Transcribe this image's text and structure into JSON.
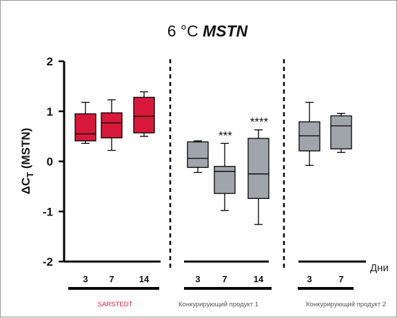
{
  "chart_data": {
    "type": "box",
    "title_prefix": "6 °C ",
    "title_gene": "MSTN",
    "ylabel_delta": "ΔC",
    "ylabel_sub": "T",
    "ylabel_rest": " (MSTN)",
    "ylim": [
      -2,
      2
    ],
    "yticks": [
      "2",
      "1",
      "0",
      "-1",
      "-2"
    ],
    "x_unit_label": "Дни",
    "colors": {
      "sarstedt": "#d6193a",
      "competitor": "#a0a4ab",
      "sarstedt_label": "#d6193a"
    },
    "groups": [
      {
        "name": "SARSTEDT",
        "categories": [
          "3",
          "7",
          "14"
        ]
      },
      {
        "name": "Конкурирующий продукт 1",
        "categories": [
          "3",
          "7",
          "14"
        ]
      },
      {
        "name": "Конкурирующий продукт 2",
        "categories": [
          "3",
          "7"
        ]
      }
    ],
    "boxes": [
      {
        "group": 0,
        "day": "3",
        "min": 0.36,
        "q1": 0.41,
        "median": 0.55,
        "q3": 0.95,
        "max": 1.18,
        "sig": ""
      },
      {
        "group": 0,
        "day": "7",
        "min": 0.22,
        "q1": 0.47,
        "median": 0.77,
        "q3": 0.97,
        "max": 1.23,
        "sig": ""
      },
      {
        "group": 0,
        "day": "14",
        "min": 0.5,
        "q1": 0.57,
        "median": 0.9,
        "q3": 1.28,
        "max": 1.39,
        "sig": ""
      },
      {
        "group": 1,
        "day": "3",
        "min": -0.22,
        "q1": -0.12,
        "median": 0.06,
        "q3": 0.39,
        "max": 0.41,
        "sig": ""
      },
      {
        "group": 1,
        "day": "7",
        "min": -0.98,
        "q1": -0.64,
        "median": -0.2,
        "q3": -0.1,
        "max": 0.36,
        "sig": "***"
      },
      {
        "group": 1,
        "day": "14",
        "min": -1.26,
        "q1": -0.74,
        "median": -0.25,
        "q3": 0.46,
        "max": 0.63,
        "sig": "****"
      },
      {
        "group": 2,
        "day": "3",
        "min": -0.08,
        "q1": 0.21,
        "median": 0.51,
        "q3": 0.79,
        "max": 1.18,
        "sig": ""
      },
      {
        "group": 2,
        "day": "7",
        "min": 0.18,
        "q1": 0.25,
        "median": 0.71,
        "q3": 0.91,
        "max": 0.96,
        "sig": ""
      }
    ]
  }
}
